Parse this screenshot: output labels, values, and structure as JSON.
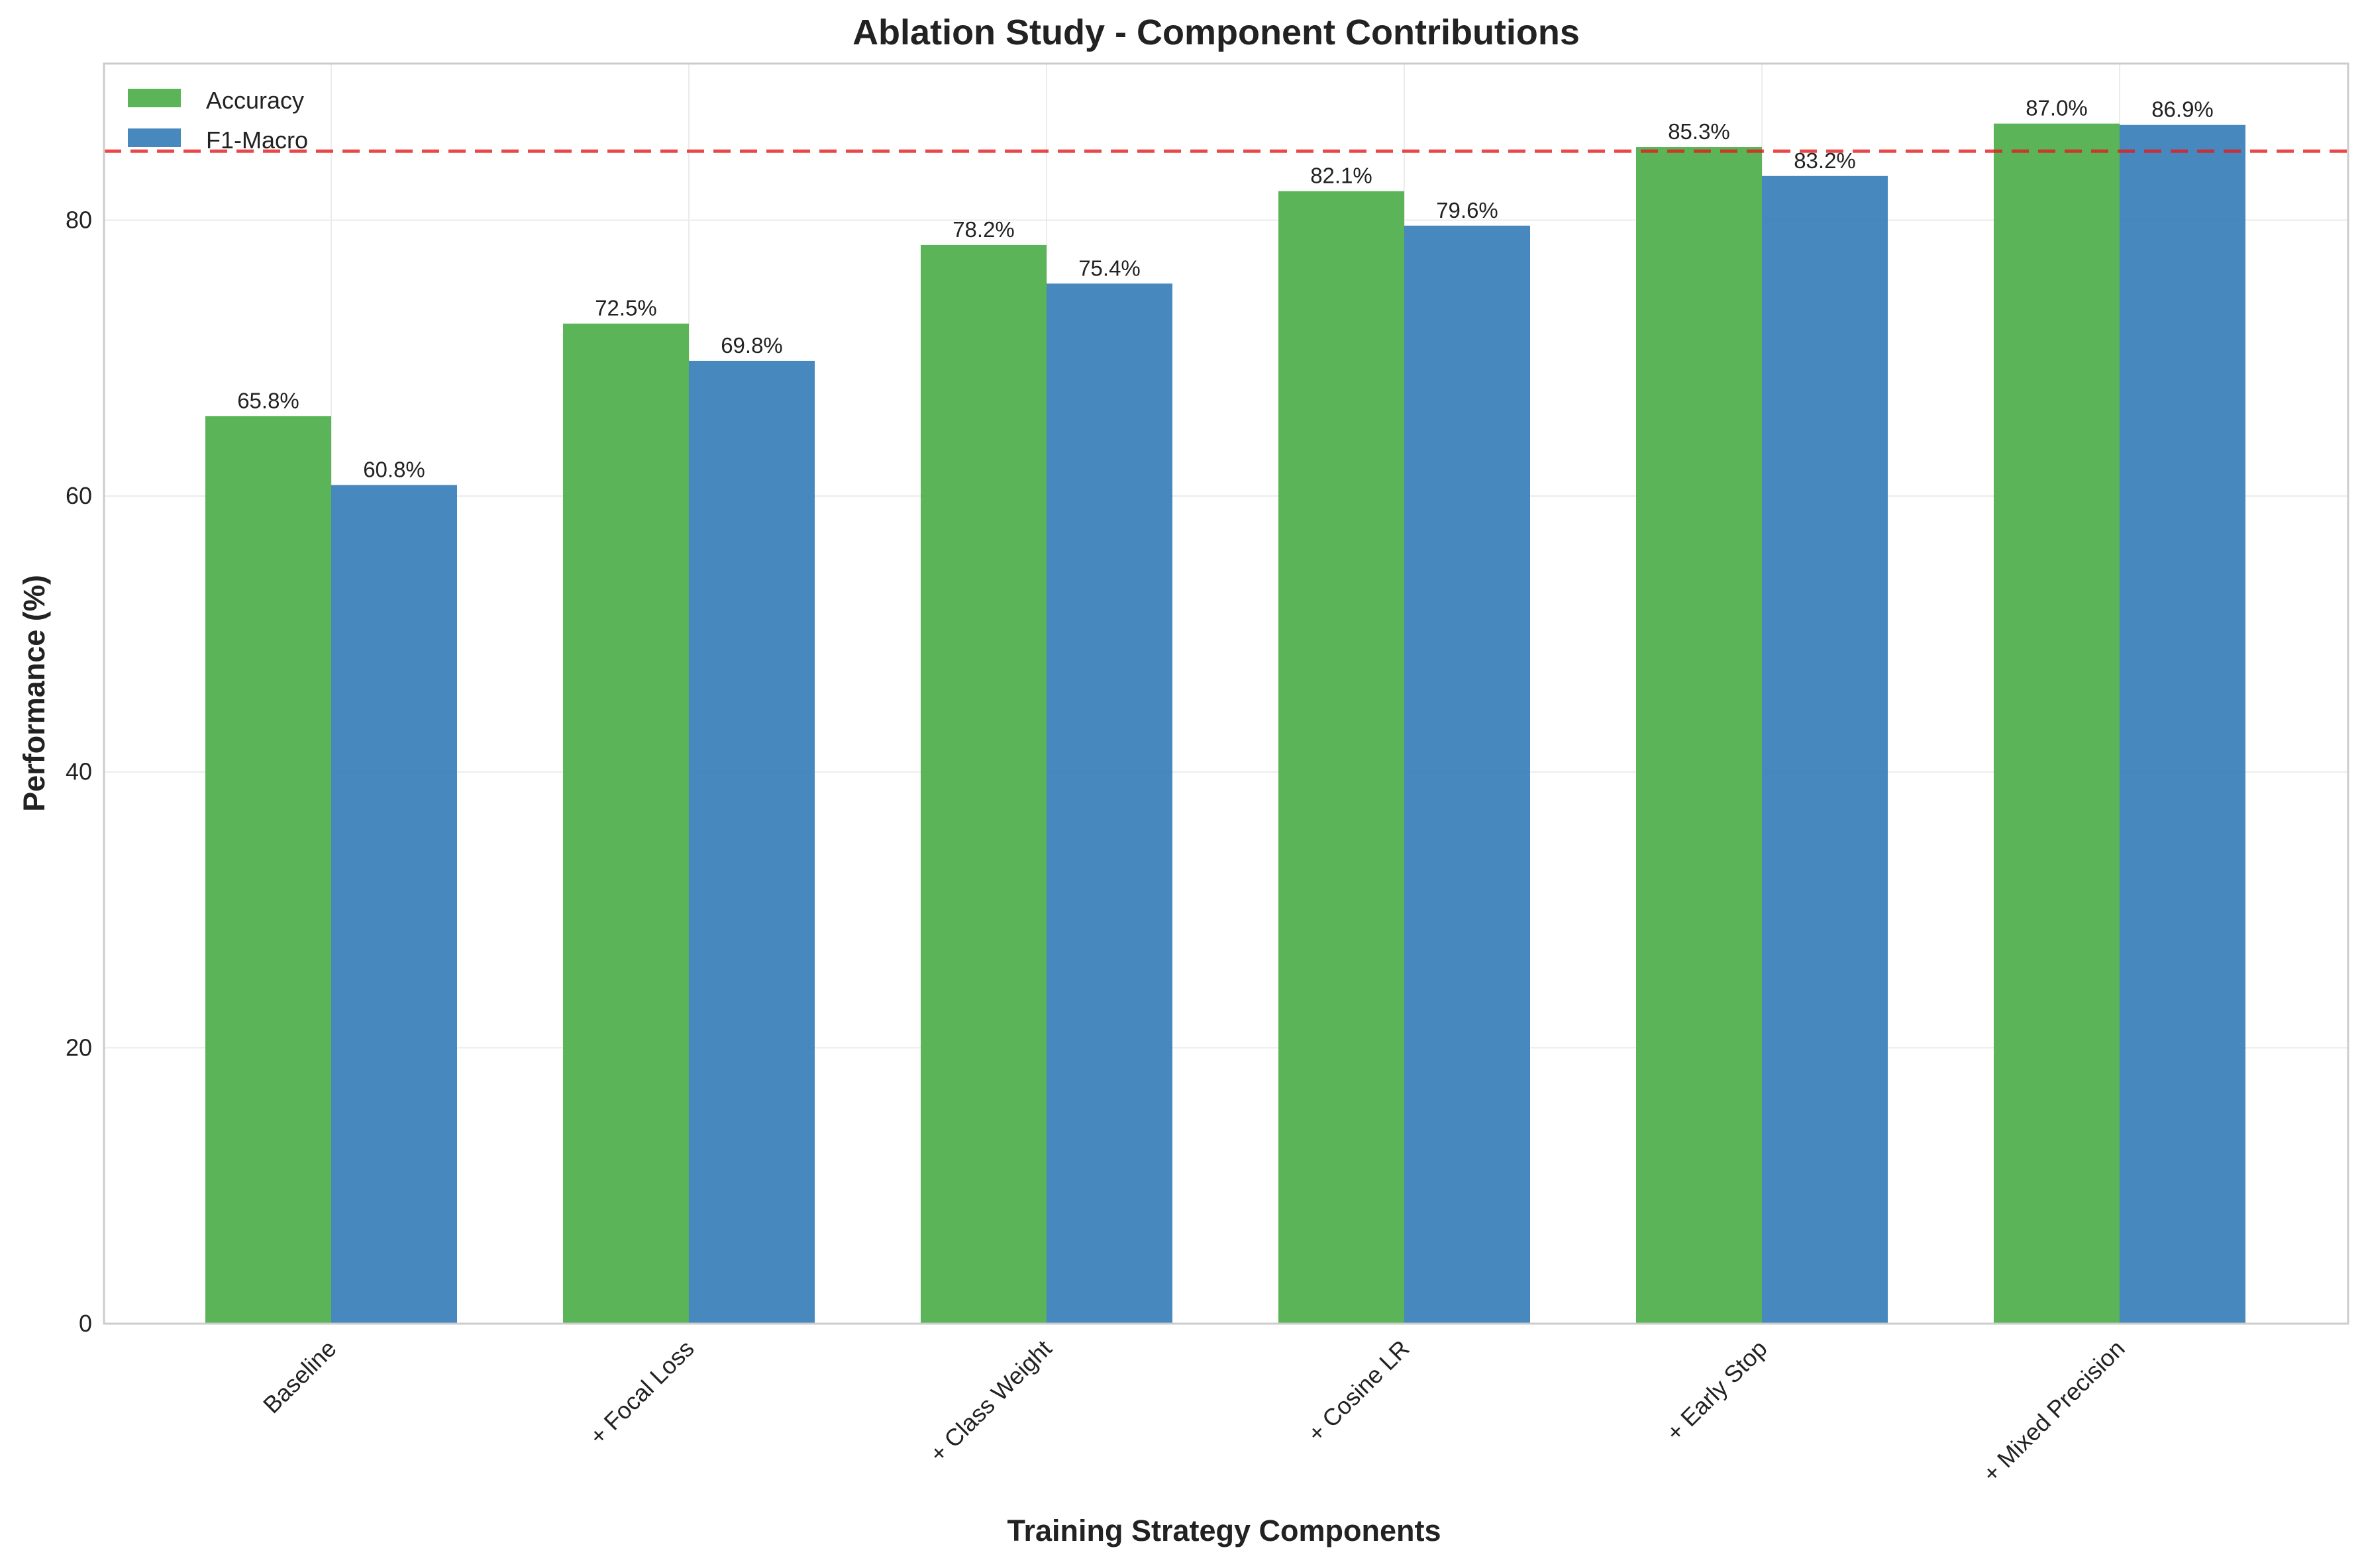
{
  "chart_data": {
    "type": "bar",
    "title": "Ablation Study - Component Contributions",
    "xlabel": "Training Strategy Components",
    "ylabel": "Performance (%)",
    "categories": [
      "Baseline",
      "+ Focal Loss",
      "+ Class Weight",
      "+ Cosine LR",
      "+ Early Stop",
      "+ Mixed Precision"
    ],
    "series": [
      {
        "name": "Accuracy",
        "color": "#4daf4a",
        "values": [
          65.8,
          72.5,
          78.2,
          82.1,
          85.3,
          87.0
        ],
        "labels": [
          "65.8%",
          "72.5%",
          "78.2%",
          "82.1%",
          "85.3%",
          "87.0%"
        ]
      },
      {
        "name": "F1-Macro",
        "color": "#377eb8",
        "values": [
          60.8,
          69.8,
          75.4,
          79.6,
          83.2,
          86.9
        ],
        "labels": [
          "60.8%",
          "69.8%",
          "75.4%",
          "79.6%",
          "83.2%",
          "86.9%"
        ]
      }
    ],
    "ylim": [
      0,
      91.35
    ],
    "yticks": [
      0,
      20,
      40,
      60,
      80
    ],
    "reference_line": {
      "value": 85,
      "color": "#e41a1c",
      "style": "dashed"
    },
    "grid": true,
    "legend": "top-left"
  }
}
